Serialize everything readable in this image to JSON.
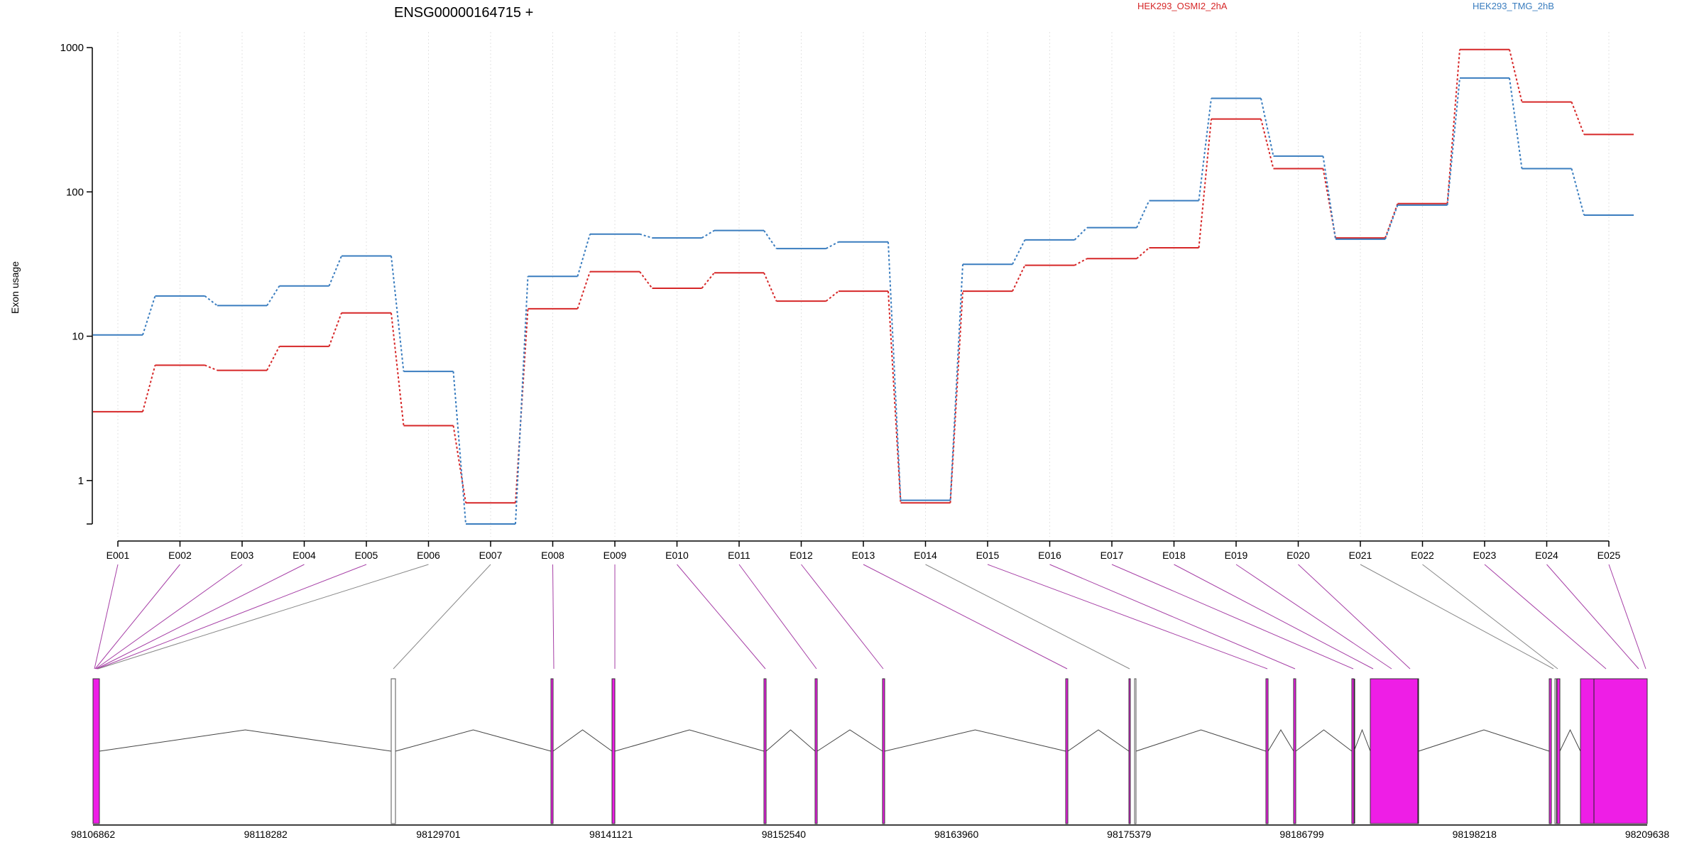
{
  "chart_data": [
    {
      "type": "line",
      "title": "ENSG00000164715 +",
      "ylabel": "Exon usage",
      "xlabel": "",
      "y_scale": "log",
      "ylim": [
        0.5,
        1000
      ],
      "y_ticks": [
        1,
        10,
        100,
        1000
      ],
      "grid": "vertical dotted at each exon",
      "legend_position": "top-right",
      "categories": [
        "E001",
        "E002",
        "E003",
        "E004",
        "E005",
        "E006",
        "E007",
        "E008",
        "E009",
        "E010",
        "E011",
        "E012",
        "E013",
        "E014",
        "E015",
        "E016",
        "E017",
        "E018",
        "E019",
        "E020",
        "E021",
        "E022",
        "E023",
        "E024",
        "E025"
      ],
      "series": [
        {
          "name": "HEK293_OSMI2_2hA",
          "color": "#d62728",
          "values": [
            3,
            6.3,
            5.8,
            8.5,
            14.5,
            2.4,
            0.7,
            15.5,
            28,
            21.5,
            27.5,
            17.5,
            20.5,
            0.7,
            20.5,
            31,
            34.5,
            41,
            320,
            145,
            48,
            83,
            970,
            420,
            250
          ]
        },
        {
          "name": "HEK293_TMG_2hB",
          "color": "#3a7dbf",
          "values": [
            10.2,
            19,
            16.3,
            22.3,
            36,
            5.7,
            0.5,
            26,
            51,
            48,
            54,
            40.5,
            45,
            0.73,
            31.5,
            46.5,
            56.5,
            87,
            445,
            177,
            47,
            81,
            615,
            145,
            69
          ]
        }
      ]
    },
    {
      "type": "gene_model",
      "x_tick_labels": [
        "98106862",
        "98118282",
        "98129701",
        "98141121",
        "98152540",
        "98163960",
        "98175379",
        "98186799",
        "98198218",
        "98209638"
      ],
      "x_range": [
        98106862,
        98209638
      ],
      "highlight_color": "#ee1ee6",
      "exon_map_flags": [
        "sig",
        "sig",
        "sig",
        "sig",
        "sig",
        "ns",
        "ns",
        "sig",
        "sig",
        "sig",
        "sig",
        "sig",
        "sig",
        "ns",
        "sig",
        "sig",
        "sig",
        "sig",
        "sig",
        "sig",
        "ns",
        "ns",
        "sig",
        "sig",
        "sig"
      ]
    }
  ]
}
